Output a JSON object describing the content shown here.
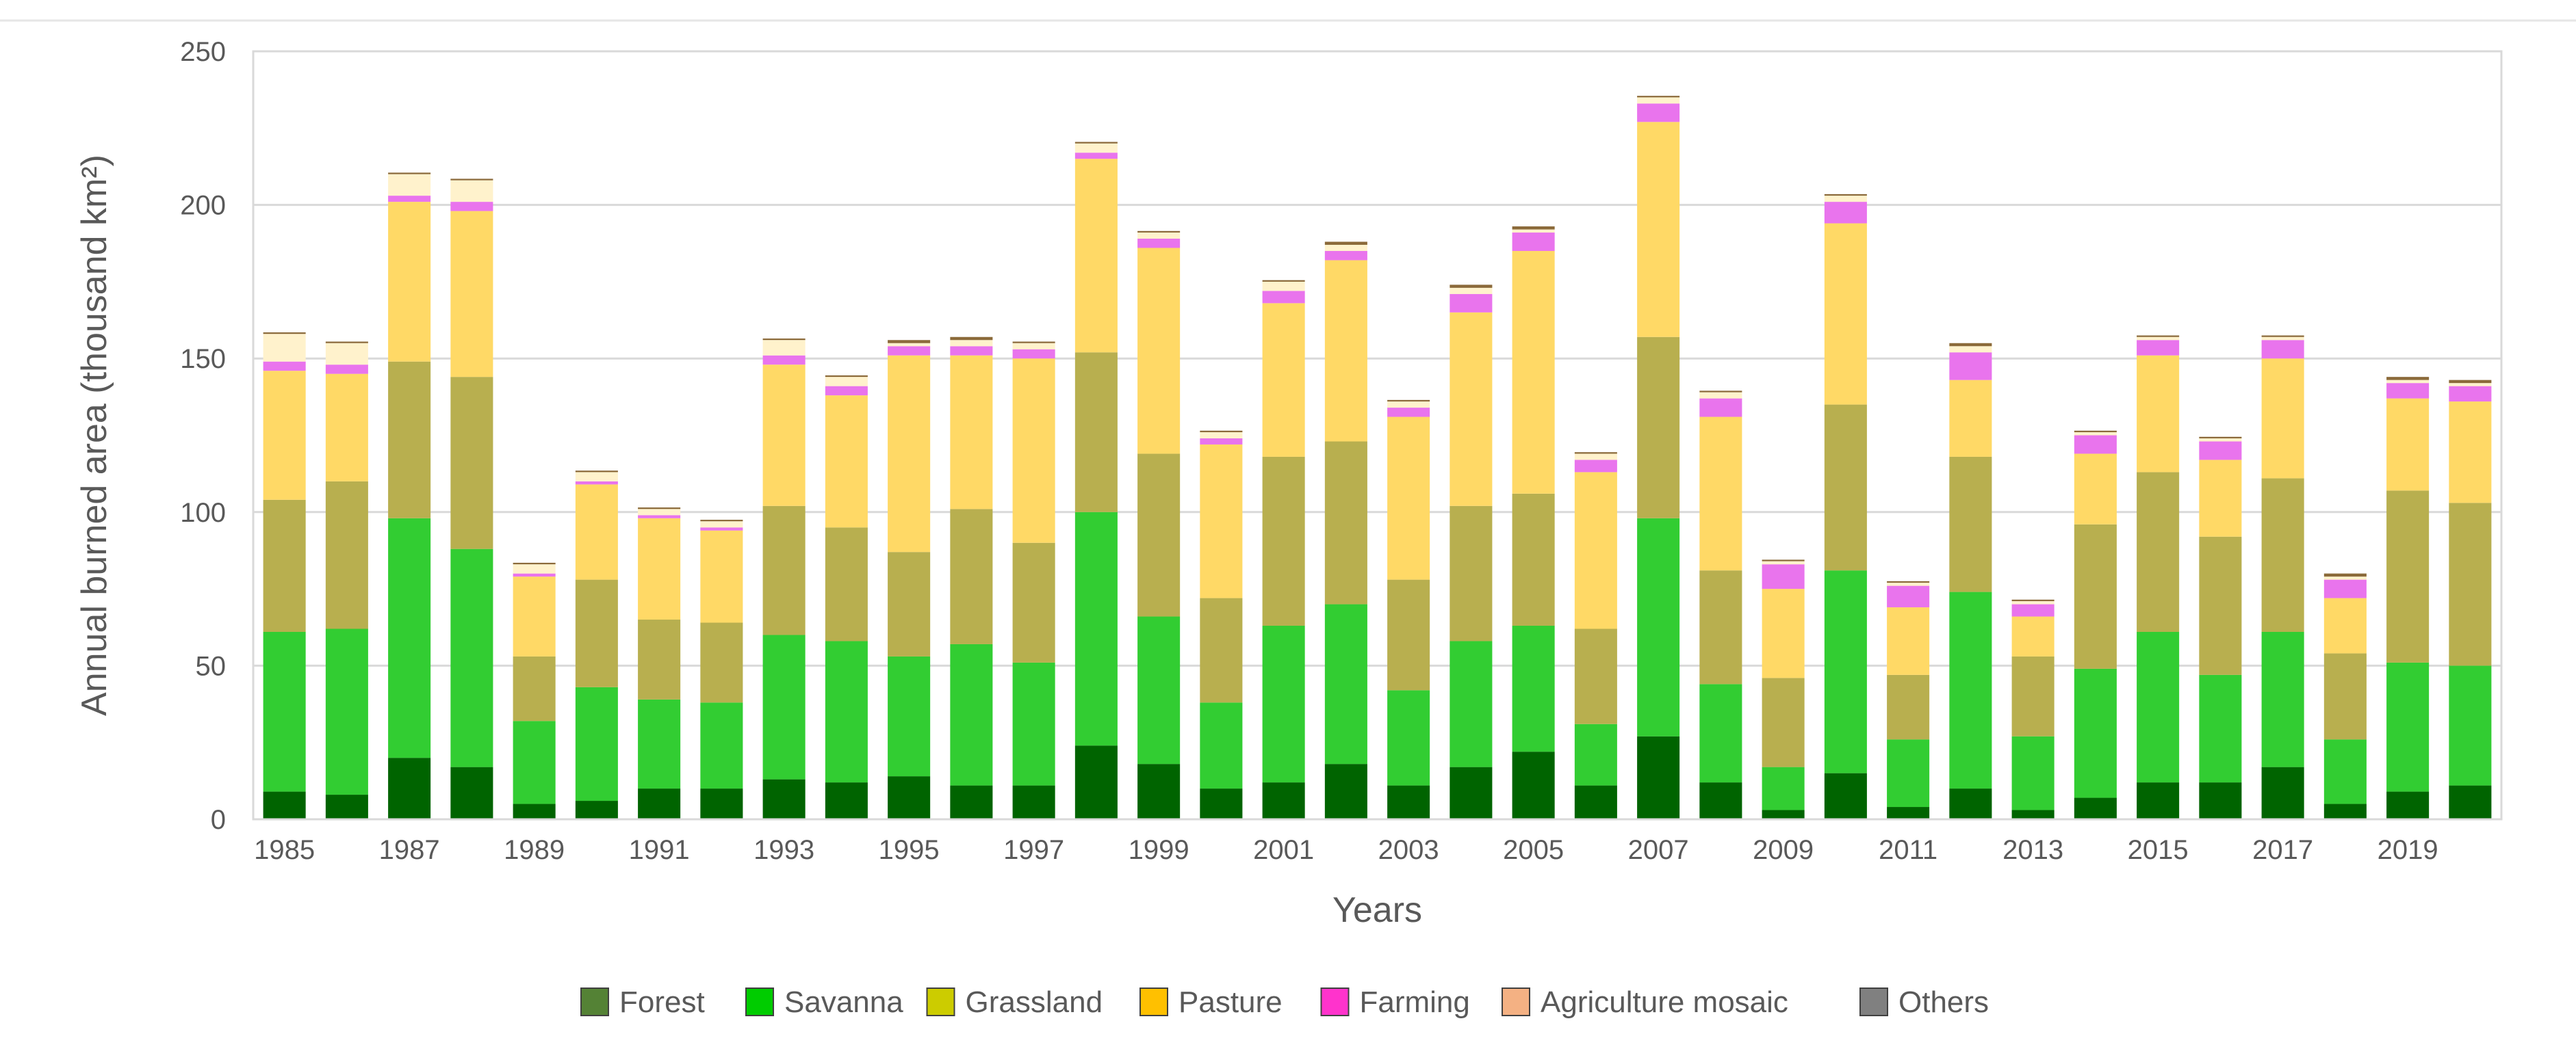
{
  "chart_data": {
    "type": "bar",
    "stacked": true,
    "xlabel": "Years",
    "ylabel": "Annual burned area (thousand km²)",
    "ylim": [
      0,
      250
    ],
    "yticks": [
      0,
      50,
      100,
      150,
      200,
      250
    ],
    "grid": true,
    "legend_position": "bottom",
    "categories": [
      "1985",
      "1986",
      "1987",
      "1988",
      "1989",
      "1990",
      "1991",
      "1992",
      "1993",
      "1994",
      "1995",
      "1996",
      "1997",
      "1998",
      "1999",
      "2000",
      "2001",
      "2002",
      "2003",
      "2004",
      "2005",
      "2006",
      "2007",
      "2008",
      "2009",
      "2010",
      "2011",
      "2012",
      "2013",
      "2014",
      "2015",
      "2016",
      "2017",
      "2018",
      "2019",
      "2020"
    ],
    "xtick_labels": [
      "1985",
      "",
      "1987",
      "",
      "1989",
      "",
      "1991",
      "",
      "1993",
      "",
      "1995",
      "",
      "1997",
      "",
      "1999",
      "",
      "2001",
      "",
      "2003",
      "",
      "2005",
      "",
      "2007",
      "",
      "2009",
      "",
      "2011",
      "",
      "2013",
      "",
      "2015",
      "",
      "2017",
      "",
      "2019",
      ""
    ],
    "series": [
      {
        "name": "Forest",
        "color": "#006400",
        "values": [
          9,
          8,
          20,
          17,
          5,
          6,
          10,
          10,
          13,
          12,
          14,
          11,
          11,
          24,
          18,
          10,
          12,
          18,
          11,
          17,
          22,
          11,
          27,
          12,
          3,
          15,
          4,
          10,
          3,
          7,
          12,
          12,
          17,
          5,
          9,
          11
        ]
      },
      {
        "name": "Savanna",
        "color": "#32cd32",
        "values": [
          52,
          54,
          78,
          71,
          27,
          37,
          29,
          28,
          47,
          46,
          39,
          46,
          40,
          76,
          48,
          28,
          51,
          52,
          31,
          41,
          41,
          20,
          71,
          32,
          14,
          66,
          22,
          64,
          24,
          42,
          49,
          35,
          44,
          21,
          42,
          39
        ]
      },
      {
        "name": "Grassland",
        "color": "#b8af4f",
        "values": [
          43,
          48,
          51,
          56,
          21,
          35,
          26,
          26,
          42,
          37,
          34,
          44,
          39,
          52,
          53,
          34,
          55,
          53,
          36,
          44,
          43,
          31,
          59,
          37,
          29,
          54,
          21,
          44,
          26,
          47,
          52,
          45,
          50,
          28,
          56,
          53
        ]
      },
      {
        "name": "Pasture",
        "color": "#ffd966",
        "values": [
          42,
          35,
          52,
          54,
          26,
          31,
          33,
          30,
          46,
          43,
          64,
          50,
          60,
          63,
          67,
          50,
          50,
          59,
          53,
          63,
          79,
          51,
          70,
          50,
          29,
          59,
          22,
          25,
          13,
          23,
          38,
          25,
          39,
          18,
          30,
          33
        ]
      },
      {
        "name": "Farming",
        "color": "#e974ed",
        "values": [
          3,
          3,
          2,
          3,
          1,
          1,
          1,
          1,
          3,
          3,
          3,
          3,
          3,
          2,
          3,
          2,
          4,
          3,
          3,
          6,
          6,
          4,
          6,
          6,
          8,
          7,
          7,
          9,
          4,
          6,
          5,
          6,
          6,
          6,
          5,
          5
        ]
      },
      {
        "name": "Agriculture mosaic",
        "color": "#fff2cc",
        "values": [
          9,
          7,
          7,
          7,
          3,
          3,
          2,
          2,
          5,
          3,
          1,
          2,
          2,
          3,
          2,
          2,
          3,
          2,
          2,
          2,
          1,
          2,
          2,
          2,
          1,
          2,
          1,
          2,
          1,
          1,
          1,
          1,
          1,
          1,
          1,
          1
        ]
      },
      {
        "name": "Others",
        "color": "#8b6a3a",
        "values": [
          0.5,
          0.5,
          0.5,
          0.5,
          0.5,
          0.5,
          0.5,
          0.5,
          0.5,
          0.5,
          1,
          1,
          0.5,
          0.5,
          0.5,
          0.5,
          0.5,
          1,
          0.5,
          1,
          1,
          0.5,
          0.5,
          0.5,
          0.5,
          0.5,
          0.5,
          1,
          0.5,
          0.5,
          0.5,
          0.5,
          0.5,
          1,
          1,
          1
        ]
      }
    ],
    "legend": [
      {
        "name": "Forest",
        "color": "#548235"
      },
      {
        "name": "Savanna",
        "color": "#00cc00"
      },
      {
        "name": "Grassland",
        "color": "#cccc00"
      },
      {
        "name": "Pasture",
        "color": "#ffc000"
      },
      {
        "name": "Farming",
        "color": "#ff33cc"
      },
      {
        "name": "Agriculture mosaic",
        "color": "#f4b183"
      },
      {
        "name": "Others",
        "color": "#808080"
      }
    ]
  }
}
